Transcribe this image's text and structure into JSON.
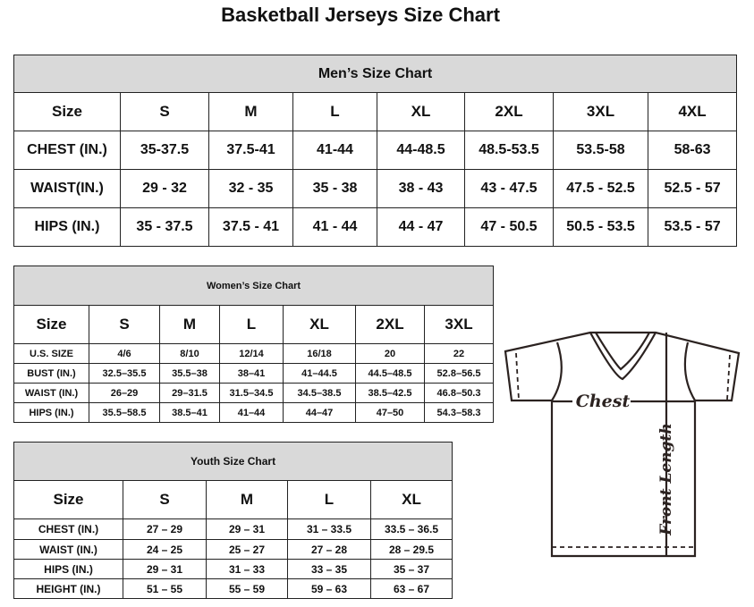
{
  "title": "Basketball Jerseys Size Chart",
  "men": {
    "caption": "Men’s Size Chart",
    "header": [
      "Size",
      "S",
      "M",
      "L",
      "XL",
      "2XL",
      "3XL",
      "4XL"
    ],
    "rows": [
      [
        "CHEST (IN.)",
        "35-37.5",
        "37.5-41",
        "41-44",
        "44-48.5",
        "48.5-53.5",
        "53.5-58",
        "58-63"
      ],
      [
        "WAIST(IN.)",
        "29 - 32",
        "32 - 35",
        "35 - 38",
        "38 - 43",
        "43 - 47.5",
        "47.5 - 52.5",
        "52.5 - 57"
      ],
      [
        "HIPS (IN.)",
        "35 - 37.5",
        "37.5 - 41",
        "41 - 44",
        "44 - 47",
        "47 - 50.5",
        "50.5 - 53.5",
        "53.5 - 57"
      ]
    ]
  },
  "women": {
    "caption": "Women’s Size Chart",
    "header": [
      "Size",
      "S",
      "M",
      "L",
      "XL",
      "2XL",
      "3XL"
    ],
    "rows": [
      [
        "U.S. SIZE",
        "4/6",
        "8/10",
        "12/14",
        "16/18",
        "20",
        "22"
      ],
      [
        "BUST (IN.)",
        "32.5–35.5",
        "35.5–38",
        "38–41",
        "41–44.5",
        "44.5–48.5",
        "52.8–56.5"
      ],
      [
        "WAIST (IN.)",
        "26–29",
        "29–31.5",
        "31.5–34.5",
        "34.5–38.5",
        "38.5–42.5",
        "46.8–50.3"
      ],
      [
        "HIPS (IN.)",
        "35.5–58.5",
        "38.5–41",
        "41–44",
        "44–47",
        "47–50",
        "54.3–58.3"
      ]
    ]
  },
  "youth": {
    "caption": "Youth Size Chart",
    "header": [
      "Size",
      "S",
      "M",
      "L",
      "XL"
    ],
    "rows": [
      [
        "CHEST (IN.)",
        "27 – 29",
        "29 – 31",
        "31 – 33.5",
        "33.5 – 36.5"
      ],
      [
        "WAIST (IN.)",
        "24 – 25",
        "25 – 27",
        "27 – 28",
        "28 – 29.5"
      ],
      [
        "HIPS (IN.)",
        "29 – 31",
        "31 – 33",
        "33 – 35",
        "35 – 37"
      ],
      [
        "HEIGHT (IN.)",
        "51 – 55",
        "55 – 59",
        "59 – 63",
        "63 – 67"
      ]
    ]
  },
  "diagram": {
    "chest_label": "Chest",
    "length_label": "Front Length"
  }
}
